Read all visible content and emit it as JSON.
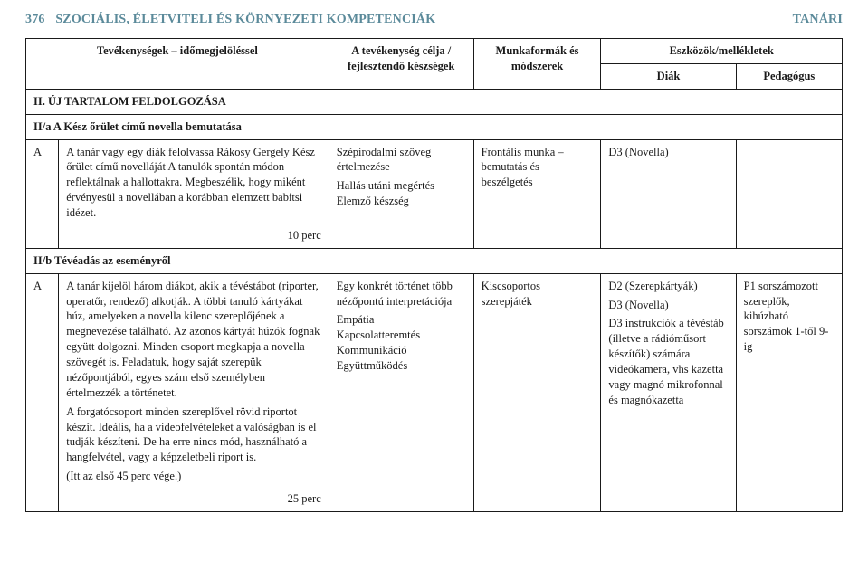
{
  "header": {
    "page_number": "376",
    "title_left": "SZOCIÁLIS, ÉLETVITELI ÉS KÖRNYEZETI KOMPETENCIÁK",
    "title_right": "TANÁRI"
  },
  "table": {
    "head": {
      "activities": "Tevékenységek – időmegjelöléssel",
      "goal": "A tevékenység célja / fejlesztendő készségek",
      "forms": "Munkaformák és módszerek",
      "tools": "Eszközök/mellékletek",
      "diak": "Diák",
      "pedagogus": "Pedagógus"
    },
    "section2": {
      "title": "II. ÚJ TARTALOM FELDOLGOZÁSA"
    },
    "row2a": {
      "title": "II/a A Kész őrület című novella bemutatása",
      "label": "A",
      "activity": "A tanár vagy egy diák felolvassa Rákosy Gergely Kész őrület című novelláját A tanulók spontán módon reflektálnak a hallottakra. Megbeszélik, hogy miként érvényesül a novellában a korábban elemzett babitsi idézet.",
      "time": "10 perc",
      "goal1": "Szépirodalmi szöveg értelmezése",
      "goal2": "Hallás utáni megértés",
      "goal3": "Elemző készség",
      "form": "Frontális munka – bemutatás és beszélgetés",
      "diak": "D3 (Novella)",
      "ped": ""
    },
    "row2b": {
      "title": "II/b Tévéadás az eseményről",
      "label": "A",
      "activity": "A tanár kijelöl három diákot, akik a tévéstábot (riporter, operatőr, rendező) alkotják. A többi tanuló kártyákat húz, amelyeken a novella kilenc szereplőjének a megnevezése található. Az azonos kártyát húzók fognak együtt dolgozni. Minden csoport megkapja a novella szövegét is. Feladatuk, hogy saját szerepük nézőpontjából, egyes szám első személyben értelmezzék a történetet.",
      "activity2": "A forgatócsoport minden szereplővel rövid riportot készít. Ideális, ha a videofelvételeket a valóságban is el tudják készíteni. De ha erre nincs mód, használható a hangfelvétel, vagy a képzeletbeli riport is.",
      "activity3": "(Itt az első 45 perc vége.)",
      "time": "25 perc",
      "goal1": "Egy konkrét történet több nézőpontú interpretációja",
      "goal2": "Empátia",
      "goal3": "Kapcsolatteremtés",
      "goal4": "Kommunikáció",
      "goal5": "Együttműködés",
      "form": "Kiscsoportos szerepjáték",
      "diak1": "D2 (Szerepkártyák)",
      "diak2": "D3 (Novella)",
      "diak3": "D3 instrukciók a tévéstáb (illetve a rádióműsort készítők) számára videókamera, vhs kazetta vagy magnó mikrofonnal és magnókazetta",
      "ped": "P1 sorszámozott szereplők, kihúzható sorszámok 1-től 9-ig"
    }
  }
}
